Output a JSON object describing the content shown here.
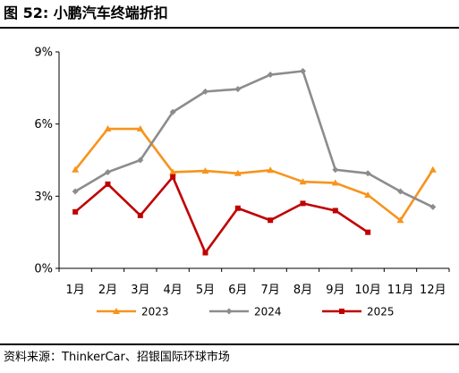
{
  "figure": {
    "title": "图 52: 小鹏汽车终端折扣",
    "source": "资料来源：ThinkerCar、招银国际环球市场"
  },
  "chart_data": {
    "type": "line",
    "categories": [
      "1月",
      "2月",
      "3月",
      "4月",
      "5月",
      "6月",
      "7月",
      "8月",
      "9月",
      "10月",
      "11月",
      "12月"
    ],
    "series": [
      {
        "name": "2023",
        "color": "#F7941D",
        "marker": "triangle",
        "values": [
          4.1,
          5.8,
          5.8,
          4.0,
          4.05,
          3.95,
          4.08,
          3.6,
          3.55,
          3.05,
          2.0,
          4.1
        ]
      },
      {
        "name": "2024",
        "color": "#8C8C8C",
        "marker": "diamond",
        "values": [
          3.2,
          4.0,
          4.5,
          6.5,
          7.35,
          7.45,
          8.05,
          8.2,
          4.1,
          3.95,
          3.2,
          2.55
        ]
      },
      {
        "name": "2025",
        "color": "#C00000",
        "marker": "square",
        "values": [
          2.35,
          3.5,
          2.2,
          3.8,
          0.65,
          2.5,
          2.0,
          2.7,
          2.4,
          1.5,
          null,
          null
        ]
      }
    ],
    "yticks": [
      "0%",
      "3%",
      "6%",
      "9%"
    ],
    "ytick_values": [
      0,
      3,
      6,
      9
    ],
    "ylim": [
      0,
      9
    ],
    "grid": false,
    "legend_position": "bottom"
  }
}
